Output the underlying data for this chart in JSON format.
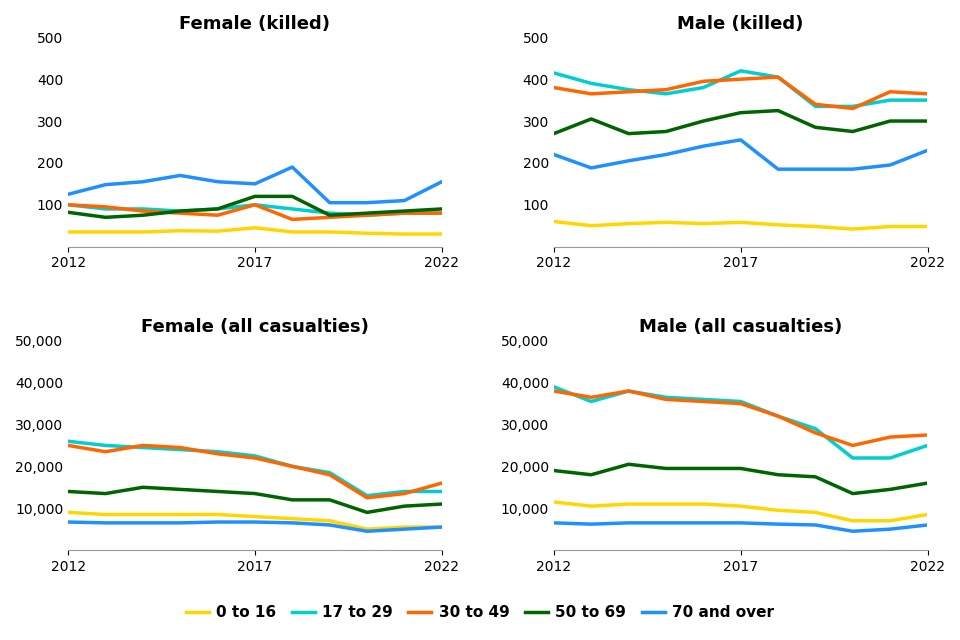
{
  "years": [
    2012,
    2013,
    2014,
    2015,
    2016,
    2017,
    2018,
    2019,
    2020,
    2021,
    2022
  ],
  "colors": {
    "0to16": "#FFD700",
    "17to29": "#00CED1",
    "30to49": "#FF6600",
    "50to69": "#006400",
    "70over": "#1E90FF"
  },
  "labels": [
    "0 to 16",
    "17 to 29",
    "30 to 49",
    "50 to 69",
    "70 and over"
  ],
  "female_killed": {
    "0to16": [
      35,
      35,
      35,
      38,
      37,
      45,
      35,
      35,
      32,
      30,
      30
    ],
    "17to29": [
      100,
      90,
      90,
      85,
      90,
      100,
      90,
      80,
      75,
      80,
      80
    ],
    "30to49": [
      100,
      95,
      85,
      80,
      75,
      100,
      65,
      70,
      75,
      80,
      80
    ],
    "50to69": [
      82,
      70,
      75,
      85,
      90,
      120,
      120,
      75,
      80,
      85,
      90
    ],
    "70over": [
      125,
      148,
      155,
      170,
      155,
      150,
      190,
      105,
      105,
      110,
      155
    ]
  },
  "male_killed": {
    "0to16": [
      60,
      50,
      55,
      58,
      55,
      58,
      52,
      48,
      42,
      48,
      48
    ],
    "17to29": [
      415,
      390,
      375,
      365,
      380,
      420,
      405,
      335,
      335,
      350,
      350
    ],
    "30to49": [
      380,
      365,
      370,
      375,
      395,
      400,
      405,
      340,
      330,
      370,
      365
    ],
    "50to69": [
      270,
      305,
      270,
      275,
      300,
      320,
      325,
      285,
      275,
      300,
      300
    ],
    "70over": [
      220,
      188,
      205,
      220,
      240,
      255,
      185,
      185,
      185,
      195,
      230
    ]
  },
  "female_all": {
    "0to16": [
      9000,
      8500,
      8500,
      8500,
      8500,
      8000,
      7500,
      7000,
      5000,
      5500,
      5500
    ],
    "17to29": [
      26000,
      25000,
      24500,
      24000,
      23500,
      22500,
      20000,
      18500,
      13000,
      14000,
      14000
    ],
    "30to49": [
      25000,
      23500,
      25000,
      24500,
      23000,
      22000,
      20000,
      18000,
      12500,
      13500,
      16000
    ],
    "50to69": [
      14000,
      13500,
      15000,
      14500,
      14000,
      13500,
      12000,
      12000,
      9000,
      10500,
      11000
    ],
    "70over": [
      6700,
      6500,
      6500,
      6500,
      6700,
      6700,
      6500,
      6000,
      4500,
      5000,
      5500
    ]
  },
  "male_all": {
    "0to16": [
      11500,
      10500,
      11000,
      11000,
      11000,
      10500,
      9500,
      9000,
      7000,
      7000,
      8500
    ],
    "17to29": [
      39000,
      35500,
      38000,
      36500,
      36000,
      35500,
      32000,
      29000,
      22000,
      22000,
      25000
    ],
    "30to49": [
      38000,
      36500,
      38000,
      36000,
      35500,
      35000,
      32000,
      28000,
      25000,
      27000,
      27500
    ],
    "50to69": [
      19000,
      18000,
      20500,
      19500,
      19500,
      19500,
      18000,
      17500,
      13500,
      14500,
      16000
    ],
    "70over": [
      6500,
      6200,
      6500,
      6500,
      6500,
      6500,
      6200,
      6000,
      4500,
      5000,
      6000
    ]
  },
  "subplot_titles": [
    "Female (killed)",
    "Male (killed)",
    "Female (all casualties)",
    "Male (all casualties)"
  ],
  "killed_ylim": [
    0,
    500
  ],
  "killed_yticks": [
    100,
    200,
    300,
    400,
    500
  ],
  "all_ylim": [
    0,
    50000
  ],
  "all_yticks": [
    10000,
    20000,
    30000,
    40000,
    50000
  ],
  "background_color": "#FFFFFF",
  "title_fontsize": 13,
  "tick_fontsize": 10,
  "legend_fontsize": 11,
  "line_width": 2.5
}
